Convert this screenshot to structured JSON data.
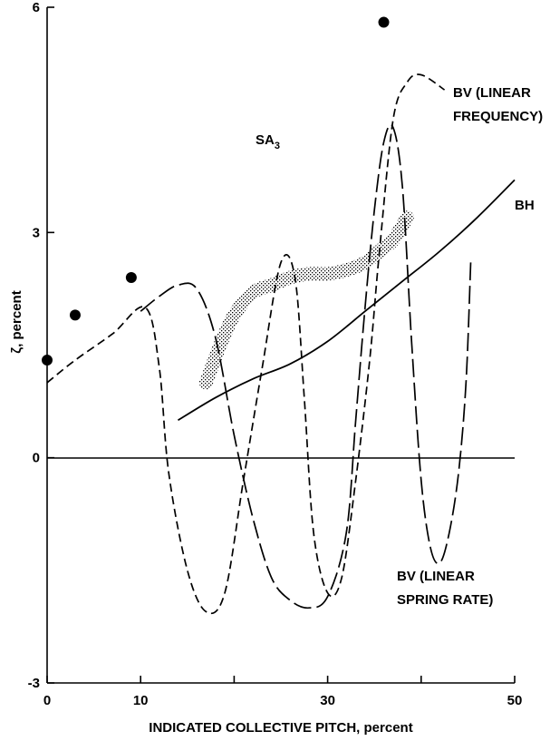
{
  "chart_data": {
    "type": "line",
    "xlabel": "INDICATED COLLECTIVE PITCH, percent",
    "ylabel": "ζ, percent",
    "xlim": [
      0,
      50
    ],
    "ylim": [
      -3,
      6
    ],
    "x_ticks": [
      0,
      10,
      30,
      50
    ],
    "x_minor_ticks": [
      20,
      40
    ],
    "y_ticks": [
      -3,
      0,
      3,
      6
    ],
    "grid": false,
    "zero_line": true,
    "points": {
      "name": "SA3",
      "x": [
        0,
        3,
        9,
        36
      ],
      "y": [
        1.3,
        1.9,
        2.4,
        5.8
      ]
    },
    "series": [
      {
        "name": "BV (LINEAR SPRING RATE)",
        "style": "dashed",
        "points": [
          [
            0,
            1.0
          ],
          [
            3,
            1.3
          ],
          [
            7,
            1.65
          ],
          [
            10.5,
            2.0
          ],
          [
            12,
            1.2
          ],
          [
            13,
            -0.2
          ],
          [
            15,
            -1.5
          ],
          [
            17,
            -2.05
          ],
          [
            19,
            -1.8
          ],
          [
            21,
            -0.3
          ],
          [
            23,
            1.2
          ],
          [
            25,
            2.6
          ],
          [
            26.5,
            2.4
          ],
          [
            27.5,
            0.8
          ],
          [
            28.5,
            -1.0
          ],
          [
            30,
            -1.8
          ],
          [
            31.5,
            -1.6
          ],
          [
            33,
            -0.3
          ],
          [
            34.5,
            1.3
          ],
          [
            35.5,
            2.7
          ],
          [
            37,
            4.5
          ],
          [
            38.5,
            5.0
          ],
          [
            40,
            5.1
          ],
          [
            42.5,
            4.9
          ]
        ]
      },
      {
        "name": "BV (LINEAR FREQUENCY)",
        "style": "longdash",
        "points": [
          [
            10,
            1.95
          ],
          [
            12,
            2.15
          ],
          [
            14,
            2.3
          ],
          [
            16,
            2.25
          ],
          [
            18,
            1.6
          ],
          [
            20,
            0.3
          ],
          [
            22,
            -0.8
          ],
          [
            24,
            -1.6
          ],
          [
            26,
            -1.9
          ],
          [
            28,
            -2.0
          ],
          [
            30,
            -1.85
          ],
          [
            32,
            -1.0
          ],
          [
            33,
            0.5
          ],
          [
            34,
            2.0
          ],
          [
            35,
            3.3
          ],
          [
            36,
            4.2
          ],
          [
            37,
            4.4
          ],
          [
            38,
            3.6
          ],
          [
            39,
            1.5
          ],
          [
            40,
            -0.3
          ],
          [
            41,
            -1.2
          ],
          [
            42,
            -1.4
          ],
          [
            43,
            -1.0
          ],
          [
            44,
            -0.2
          ],
          [
            44.8,
            1.0
          ],
          [
            45.3,
            2.6
          ]
        ]
      },
      {
        "name": "BH",
        "style": "solid",
        "points": [
          [
            14,
            0.5
          ],
          [
            18,
            0.8
          ],
          [
            22,
            1.05
          ],
          [
            26,
            1.25
          ],
          [
            30,
            1.55
          ],
          [
            34,
            1.95
          ],
          [
            38,
            2.35
          ],
          [
            42,
            2.75
          ],
          [
            46,
            3.2
          ],
          [
            50,
            3.7
          ]
        ]
      },
      {
        "name": "band",
        "style": "stipple",
        "points": [
          [
            17,
            1.0
          ],
          [
            18.5,
            1.5
          ],
          [
            20,
            1.9
          ],
          [
            22,
            2.2
          ],
          [
            24,
            2.3
          ],
          [
            26,
            2.4
          ],
          [
            28,
            2.45
          ],
          [
            30,
            2.45
          ],
          [
            32,
            2.5
          ],
          [
            34,
            2.6
          ],
          [
            36,
            2.8
          ],
          [
            37,
            2.9
          ],
          [
            38.5,
            3.2
          ]
        ]
      }
    ],
    "annotations": {
      "sa3_main": "SA",
      "sa3_sub": "3",
      "bv_freq_line1": "BV (LINEAR",
      "bv_freq_line2": "FREQUENCY)",
      "bh": "BH",
      "bv_spring_line1": "BV (LINEAR",
      "bv_spring_line2": "SPRING RATE)"
    }
  }
}
